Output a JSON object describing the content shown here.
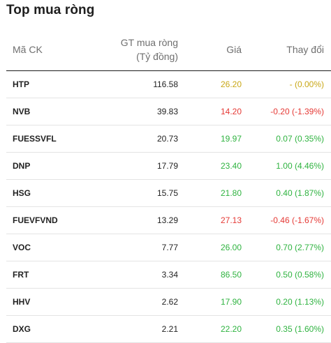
{
  "title": "Top mua ròng",
  "colors": {
    "up": "#2fb340",
    "down": "#e53935",
    "flat": "#c9a716"
  },
  "columns": {
    "code": "Mã CK",
    "value_line1": "GT mua ròng",
    "value_line2": "(Tỷ đồng)",
    "price": "Giá",
    "change": "Thay đổi"
  },
  "rows": [
    {
      "code": "HTP",
      "value": "116.58",
      "price": "26.20",
      "change": "- (0.00%)",
      "trend": "flat"
    },
    {
      "code": "NVB",
      "value": "39.83",
      "price": "14.20",
      "change": "-0.20 (-1.39%)",
      "trend": "down"
    },
    {
      "code": "FUESSVFL",
      "value": "20.73",
      "price": "19.97",
      "change": "0.07 (0.35%)",
      "trend": "up"
    },
    {
      "code": "DNP",
      "value": "17.79",
      "price": "23.40",
      "change": "1.00 (4.46%)",
      "trend": "up"
    },
    {
      "code": "HSG",
      "value": "15.75",
      "price": "21.80",
      "change": "0.40 (1.87%)",
      "trend": "up"
    },
    {
      "code": "FUEVFVND",
      "value": "13.29",
      "price": "27.13",
      "change": "-0.46 (-1.67%)",
      "trend": "down"
    },
    {
      "code": "VOC",
      "value": "7.77",
      "price": "26.00",
      "change": "0.70 (2.77%)",
      "trend": "up"
    },
    {
      "code": "FRT",
      "value": "3.34",
      "price": "86.50",
      "change": "0.50 (0.58%)",
      "trend": "up"
    },
    {
      "code": "HHV",
      "value": "2.62",
      "price": "17.90",
      "change": "0.20 (1.13%)",
      "trend": "up"
    },
    {
      "code": "DXG",
      "value": "2.21",
      "price": "22.20",
      "change": "0.35 (1.60%)",
      "trend": "up"
    }
  ]
}
